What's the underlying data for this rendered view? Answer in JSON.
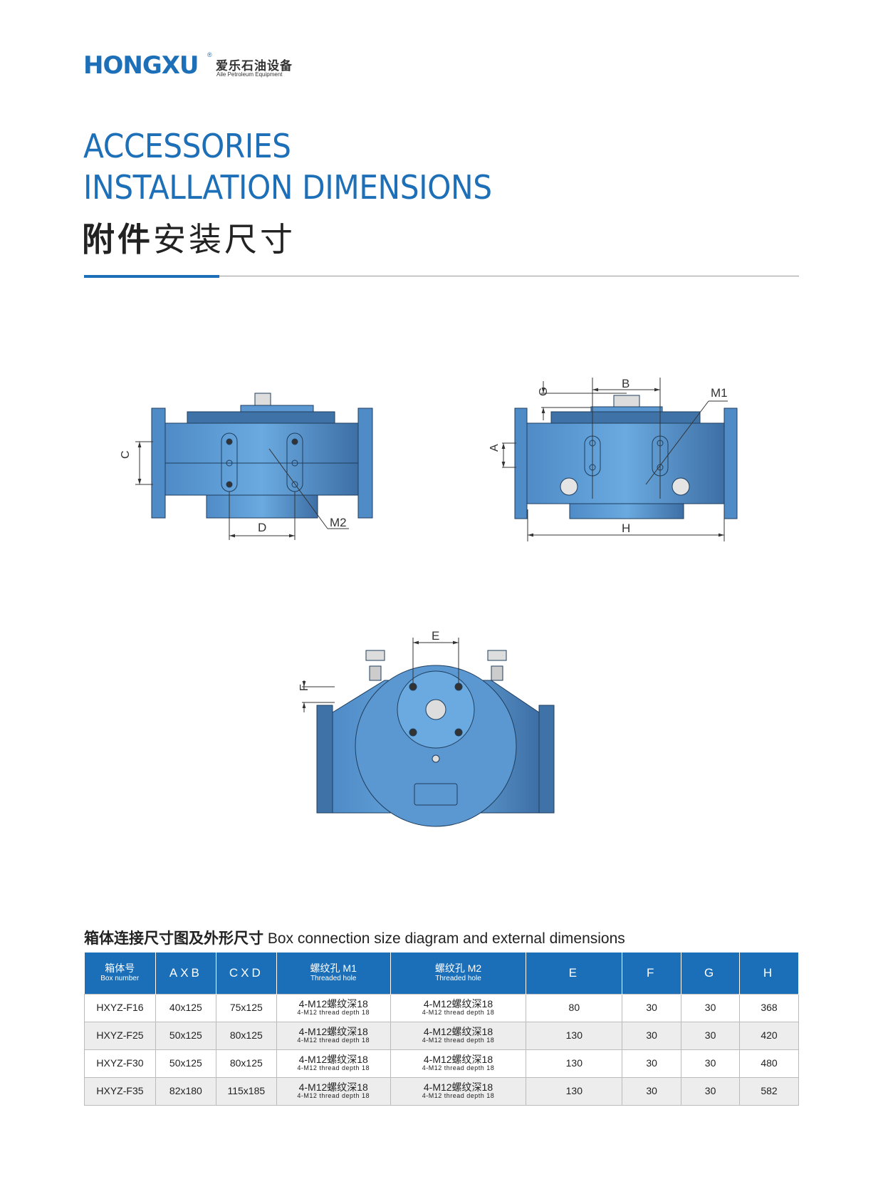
{
  "logo": {
    "brand": "HONGXU",
    "registered": "®",
    "cn": "爱乐石油设备",
    "en": "Aile Petroleum Equipment"
  },
  "heading": {
    "line1": "ACCESSORIES",
    "line2": "INSTALLATION DIMENSIONS",
    "cn_bold": "附件",
    "cn_regular": "安装尺寸"
  },
  "drawings": {
    "side_view": {
      "labels": {
        "c": "C",
        "d": "D",
        "m2": "M2"
      }
    },
    "front_view": {
      "labels": {
        "b": "B",
        "g": "G",
        "m1": "M1",
        "a": "A",
        "h": "H"
      }
    },
    "top_view": {
      "labels": {
        "e": "E",
        "f": "F"
      }
    },
    "body_color": "#5b98d2"
  },
  "table": {
    "title_cn": "箱体连接尺寸图及外形尺寸",
    "title_en": "Box connection size diagram and external dimensions",
    "headers": [
      {
        "main": "箱体号",
        "sub": "Box number"
      },
      {
        "main": "AXB"
      },
      {
        "main": "CXD"
      },
      {
        "main": "螺纹孔 M1",
        "sub": "Threaded hole"
      },
      {
        "main": "螺纹孔 M2",
        "sub": "Threaded hole"
      },
      {
        "main": "E"
      },
      {
        "main": "F"
      },
      {
        "main": "G"
      },
      {
        "main": "H"
      }
    ],
    "rows": [
      {
        "box": "HXYZ-F16",
        "axb": "40x125",
        "cxd": "75x125",
        "m1": "4-M12螺纹深18",
        "m1_sub": "4-M12 thread depth 18",
        "m2": "4-M12螺纹深18",
        "m2_sub": "4-M12 thread depth 18",
        "e": "80",
        "f": "30",
        "g": "30",
        "h": "368"
      },
      {
        "box": "HXYZ-F25",
        "axb": "50x125",
        "cxd": "80x125",
        "m1": "4-M12螺纹深18",
        "m1_sub": "4-M12 thread depth 18",
        "m2": "4-M12螺纹深18",
        "m2_sub": "4-M12 thread depth 18",
        "e": "130",
        "f": "30",
        "g": "30",
        "h": "420"
      },
      {
        "box": "HXYZ-F30",
        "axb": "50x125",
        "cxd": "80x125",
        "m1": "4-M12螺纹深18",
        "m1_sub": "4-M12 thread depth 18",
        "m2": "4-M12螺纹深18",
        "m2_sub": "4-M12 thread depth 18",
        "e": "130",
        "f": "30",
        "g": "30",
        "h": "480"
      },
      {
        "box": "HXYZ-F35",
        "axb": "82x180",
        "cxd": "115x185",
        "m1": "4-M12螺纹深18",
        "m1_sub": "4-M12 thread depth 18",
        "m2": "4-M12螺纹深18",
        "m2_sub": "4-M12 thread depth 18",
        "e": "130",
        "f": "30",
        "g": "30",
        "h": "582"
      }
    ]
  }
}
